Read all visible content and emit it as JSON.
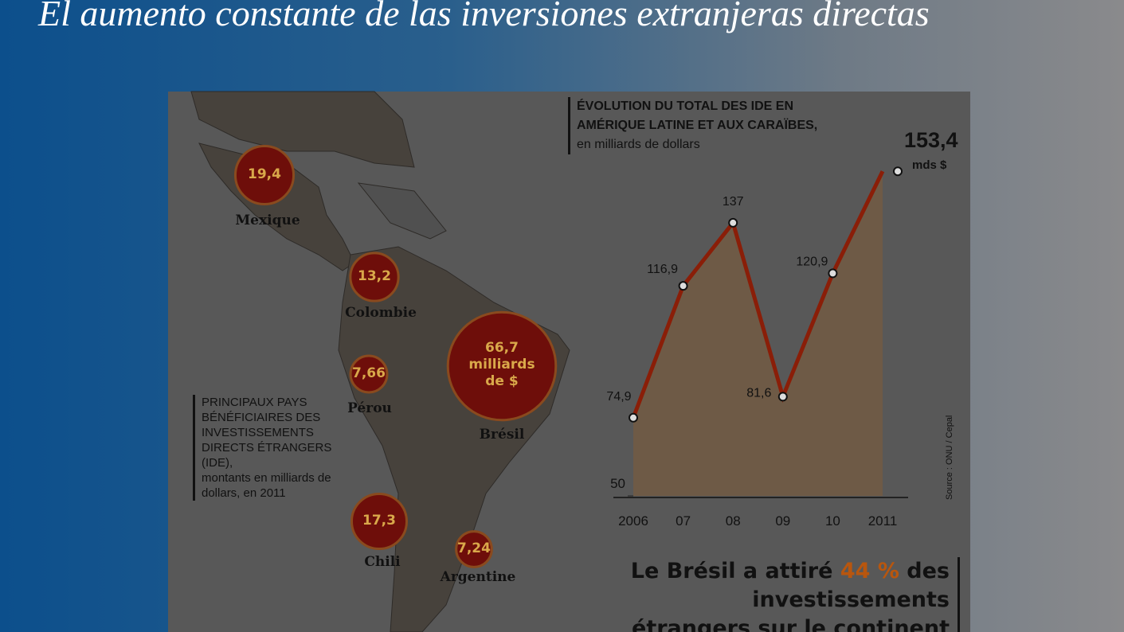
{
  "slide_title": "El aumento constante de las inversiones extranjeras directas",
  "map": {
    "heading": "PRINCIPAUX PAYS BÉNÉFICIAIRES DES INVESTISSEMENTS DIRECTS ÉTRANGERS (IDE),",
    "subheading": "montants en milliards de dollars, en 2011",
    "bubbles": [
      {
        "country": "Mexique",
        "value": 19.4,
        "value_label": "19,4"
      },
      {
        "country": "Colombie",
        "value": 13.2,
        "value_label": "13,2"
      },
      {
        "country": "Pérou",
        "value": 7.66,
        "value_label": "7,66"
      },
      {
        "country": "Brésil",
        "value": 66.7,
        "value_label": "66,7 milliards de $"
      },
      {
        "country": "Chili",
        "value": 17.3,
        "value_label": "17,3"
      },
      {
        "country": "Argentine",
        "value": 7.24,
        "value_label": "7,24"
      }
    ]
  },
  "chart_data": {
    "type": "line",
    "title": "ÉVOLUTION DU TOTAL DES IDE EN AMÉRIQUE LATINE ET AUX CARAÏBES,",
    "subtitle": "en milliards de dollars",
    "categories": [
      "2006",
      "07",
      "08",
      "09",
      "10",
      "2011"
    ],
    "values": [
      74.9,
      116.9,
      137,
      81.6,
      120.9,
      153.4
    ],
    "value_labels": [
      "74,9",
      "116,9",
      "137",
      "81,6",
      "120,9",
      "153,4"
    ],
    "last_value_unit": "mds $",
    "color": "#8a1e08",
    "area_color": "#6e5a46",
    "ylim": [
      50,
      167.4
    ],
    "yticks": [
      50
    ],
    "source": "Source : ONU / Cepal"
  },
  "callout": {
    "lead": "Le Brésil a attiré",
    "highlight": "44 %",
    "rest": "des investissements étrangers sur le continent"
  }
}
